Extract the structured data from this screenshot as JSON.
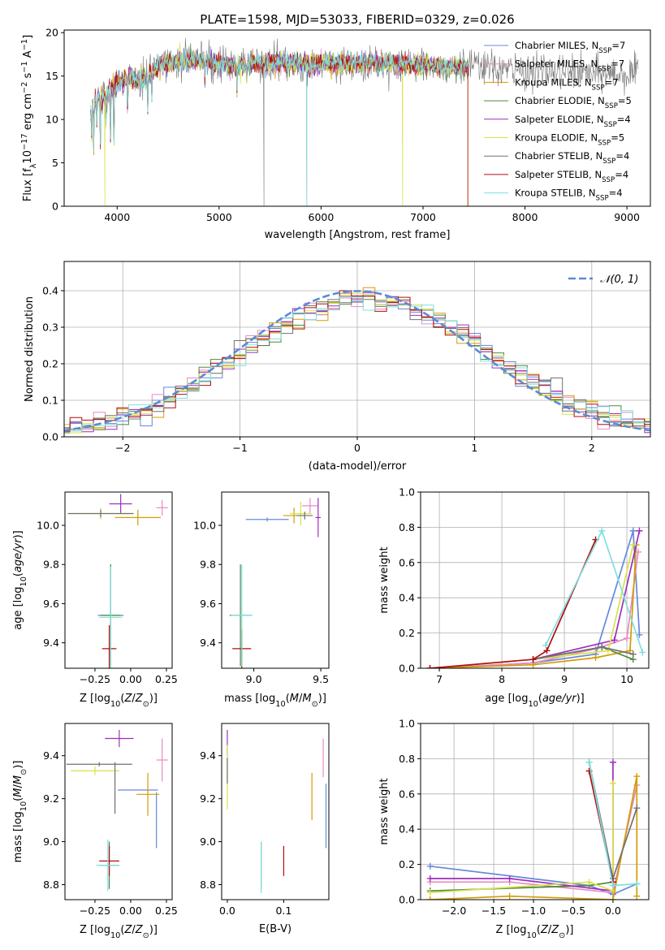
{
  "figure_title": "PLATE=1598, MJD=53033, FIBERID=0329, z=0.026",
  "model_colors": [
    "#6688dd",
    "#e78ac3",
    "#d29d05",
    "#4d8a3e",
    "#9c2fbd",
    "#d9e14a",
    "#707070",
    "#b10d0d",
    "#7fdfe0"
  ],
  "extra_colors": {
    "orange": "#f07f1e",
    "pink": "#e86bbd"
  },
  "chart_data": [
    {
      "id": "spectrum",
      "type": "line",
      "xlabel": "wavelength [Angstrom, rest frame]",
      "ylabel": "Flux [fλ10⁻¹⁷ erg cm⁻² s⁻¹ A⁻¹]",
      "xlim": [
        3480,
        9230
      ],
      "ylim": [
        0,
        20.3
      ],
      "xticks": [
        4000,
        5000,
        6000,
        7000,
        8000,
        9000
      ],
      "yticks": [
        0,
        5,
        10,
        15,
        20
      ],
      "grid": false,
      "legend_position": "upper-right",
      "continuum": [
        [
          3740,
          11.0
        ],
        [
          3800,
          12.3
        ],
        [
          3900,
          13.0
        ],
        [
          4000,
          14.2
        ],
        [
          4100,
          14.8
        ],
        [
          4200,
          14.6
        ],
        [
          4300,
          14.9
        ],
        [
          4400,
          16.2
        ],
        [
          4500,
          16.5
        ],
        [
          4700,
          16.8
        ],
        [
          4900,
          16.7
        ],
        [
          5100,
          16.3
        ],
        [
          5300,
          16.4
        ],
        [
          5600,
          16.6
        ],
        [
          5900,
          16.4
        ],
        [
          6200,
          16.4
        ],
        [
          6500,
          16.6
        ],
        [
          6800,
          16.4
        ],
        [
          7100,
          16.2
        ],
        [
          7440,
          16.1
        ],
        [
          7700,
          15.8
        ],
        [
          8000,
          15.6
        ],
        [
          8500,
          15.4
        ],
        [
          9000,
          15.2
        ],
        [
          9110,
          15.3
        ]
      ],
      "absorption_features": [
        [
          3750,
          8.0
        ],
        [
          3770,
          6.5
        ],
        [
          3800,
          9.5
        ],
        [
          3835,
          7.0
        ],
        [
          3890,
          9.5
        ],
        [
          3934,
          6.3
        ],
        [
          3968,
          4.2
        ],
        [
          4102,
          9.5
        ],
        [
          4227,
          12.2
        ],
        [
          4300,
          11.0
        ],
        [
          4340,
          12.6
        ],
        [
          4861,
          14.0
        ],
        [
          5175,
          13.2
        ],
        [
          5270,
          14.4
        ],
        [
          5892,
          14.6
        ],
        [
          6563,
          15.2
        ],
        [
          8498,
          14.1
        ],
        [
          8542,
          13.6
        ],
        [
          8662,
          14.0
        ]
      ],
      "dropouts": [
        {
          "x": 3880,
          "y": 0
        },
        {
          "x": 5440,
          "y": 0
        },
        {
          "x": 5860,
          "y": 0
        },
        {
          "x": 6800,
          "y": 0
        },
        {
          "x": 7430,
          "y": 0
        }
      ],
      "series": [
        {
          "name": "Chabrier MILES, N",
          "sub": "SSP",
          "suffix": "=7"
        },
        {
          "name": "Salpeter MILES, N",
          "sub": "SSP",
          "suffix": "=7"
        },
        {
          "name": "Kroupa MILES, N",
          "sub": "SSP",
          "suffix": "=7"
        },
        {
          "name": "Chabrier ELODIE, N",
          "sub": "SSP",
          "suffix": "=5"
        },
        {
          "name": "Salpeter ELODIE, N",
          "sub": "SSP",
          "suffix": "=4"
        },
        {
          "name": "Kroupa ELODIE, N",
          "sub": "SSP",
          "suffix": "=5"
        },
        {
          "name": "Chabrier STELIB, N",
          "sub": "SSP",
          "suffix": "=4"
        },
        {
          "name": "Salpeter STELIB, N",
          "sub": "SSP",
          "suffix": "=4"
        },
        {
          "name": "Kroupa STELIB, N",
          "sub": "SSP",
          "suffix": "=4"
        }
      ]
    },
    {
      "id": "residuals",
      "type": "line",
      "xlabel": "(data-model)/error",
      "ylabel": "Normed distribution",
      "xlim": [
        -2.5,
        2.5
      ],
      "ylim": [
        0,
        0.48
      ],
      "xticks": [
        -2,
        -1,
        0,
        1,
        2
      ],
      "yticks": [
        0.0,
        0.1,
        0.2,
        0.3,
        0.4
      ],
      "grid": true,
      "legend_position": "upper-right",
      "reference_curve": {
        "name": "𝒩(0, 1)",
        "color": "#5b8ad6"
      },
      "bin_width": 0.1
    },
    {
      "id": "age-vs-Z",
      "type": "scatter",
      "xlabel": "Z [log10(Z/Z⊙)]",
      "ylabel": "age  [log10(age/yr)]",
      "xlim": [
        -0.46,
        0.29
      ],
      "ylim": [
        9.27,
        10.17
      ],
      "xticks": [
        -0.25,
        0.0,
        0.25
      ],
      "yticks": [
        9.4,
        9.6,
        9.8,
        10.0
      ],
      "grid": false,
      "points": [
        {
          "c": 0,
          "x": -0.14,
          "y": 9.54,
          "dx": 0.09,
          "dy": 0.26
        },
        {
          "c": 1,
          "x": 0.22,
          "y": 10.09,
          "dx": 0.04,
          "dy": 0.04
        },
        {
          "c": 2,
          "x": 0.05,
          "y": 10.04,
          "dx": 0.16,
          "dy": 0.04
        },
        {
          "c": 3,
          "x": -0.14,
          "y": 9.54,
          "dx": 0.07,
          "dy": 0.26
        },
        {
          "c": 4,
          "x": -0.07,
          "y": 10.11,
          "dx": 0.08,
          "dy": 0.05
        },
        {
          "c": 5,
          "x": -0.21,
          "y": 10.06,
          "dx": 0.21,
          "dy": 0.03
        },
        {
          "c": 6,
          "x": -0.21,
          "y": 10.06,
          "dx": 0.23,
          "dy": 0.02
        },
        {
          "c": 7,
          "x": -0.15,
          "y": 9.37,
          "dx": 0.05,
          "dy": 0.12
        },
        {
          "c": 8,
          "x": -0.14,
          "y": 9.53,
          "dx": 0.08,
          "dy": 0.26
        }
      ]
    },
    {
      "id": "age-vs-mass",
      "type": "scatter",
      "xlabel": "mass [log10(M/M⊙)]",
      "ylabel": "",
      "xlim": [
        8.76,
        9.56
      ],
      "ylim": [
        9.27,
        10.17
      ],
      "xticks": [
        9.0,
        9.5
      ],
      "yticks": [
        9.4,
        9.6,
        9.8,
        10.0
      ],
      "grid": false,
      "points": [
        {
          "c": 0,
          "x": 9.1,
          "y": 10.03,
          "dx": 0.16,
          "dy": 0.01
        },
        {
          "c": 1,
          "x": 9.42,
          "y": 10.1,
          "dx": 0.06,
          "dy": 0.04
        },
        {
          "c": 2,
          "x": 9.3,
          "y": 10.05,
          "dx": 0.08,
          "dy": 0.04
        },
        {
          "c": 3,
          "x": 8.9,
          "y": 9.54,
          "dx": 0.08,
          "dy": 0.26
        },
        {
          "c": 4,
          "x": 9.48,
          "y": 10.04,
          "dx": 0.02,
          "dy": 0.1
        },
        {
          "c": 5,
          "x": 9.35,
          "y": 10.06,
          "dx": 0.08,
          "dy": 0.06
        },
        {
          "c": 6,
          "x": 9.38,
          "y": 10.05,
          "dx": 0.06,
          "dy": 0.02
        },
        {
          "c": 7,
          "x": 8.91,
          "y": 9.37,
          "dx": 0.07,
          "dy": 0.1
        },
        {
          "c": 8,
          "x": 8.91,
          "y": 9.54,
          "dx": 0.08,
          "dy": 0.26
        }
      ]
    },
    {
      "id": "weight-vs-age",
      "type": "line",
      "xlabel": "age  [log10(age/yr)]",
      "ylabel": "mass weight",
      "xlim": [
        6.7,
        10.35
      ],
      "ylim": [
        0,
        1.0
      ],
      "xticks": [
        7,
        8,
        9,
        10
      ],
      "yticks": [
        0.0,
        0.2,
        0.4,
        0.6,
        0.8,
        1.0
      ],
      "grid": true,
      "series": [
        {
          "c": 0,
          "x": [
            6.85,
            8.5,
            9.5,
            10.1,
            10.2
          ],
          "y": [
            0.0,
            0.03,
            0.08,
            0.78,
            0.19
          ]
        },
        {
          "c": 1,
          "x": [
            6.85,
            8.5,
            9.5,
            10.0,
            10.18
          ],
          "y": [
            0.0,
            0.03,
            0.11,
            0.17,
            0.66
          ]
        },
        {
          "c": 2,
          "x": [
            6.85,
            8.5,
            9.5,
            10.05,
            10.15
          ],
          "y": [
            0.0,
            0.02,
            0.06,
            0.1,
            0.7
          ]
        },
        {
          "c": 3,
          "x": [
            8.5,
            9.6,
            10.1
          ],
          "y": [
            0.05,
            0.12,
            0.05
          ]
        },
        {
          "c": 4,
          "x": [
            8.5,
            9.8,
            10.2
          ],
          "y": [
            0.05,
            0.16,
            0.78
          ]
        },
        {
          "c": 5,
          "x": [
            8.5,
            9.7,
            10.1
          ],
          "y": [
            0.05,
            0.1,
            0.7
          ]
        },
        {
          "c": 6,
          "x": [
            8.5,
            9.6,
            10.1
          ],
          "y": [
            0.05,
            0.12,
            0.08
          ]
        },
        {
          "c": 7,
          "x": [
            6.85,
            8.5,
            8.72,
            9.5
          ],
          "y": [
            0.0,
            0.05,
            0.1,
            0.73
          ]
        },
        {
          "c": 8,
          "x": [
            8.7,
            9.6,
            10.25
          ],
          "y": [
            0.13,
            0.78,
            0.09
          ]
        }
      ]
    },
    {
      "id": "mass-vs-Z",
      "type": "scatter",
      "xlabel": "Z [log10(Z/Z⊙)]",
      "ylabel": "mass [log10(M/M⊙)]",
      "xlim": [
        -0.46,
        0.29
      ],
      "ylim": [
        8.73,
        9.55
      ],
      "xticks": [
        -0.25,
        0.0,
        0.25
      ],
      "yticks": [
        8.8,
        9.0,
        9.2,
        9.4
      ],
      "grid": false,
      "points": [
        {
          "c": 0,
          "x": 0.05,
          "y": 9.24,
          "dx": 0.14,
          "dy": 0.0
        },
        {
          "c": 0,
          "x": 0.18,
          "y": 9.1,
          "dx": 0.0,
          "dy": 0.13
        },
        {
          "c": 1,
          "x": 0.22,
          "y": 9.38,
          "dx": 0.04,
          "dy": 0.1
        },
        {
          "c": 2,
          "x": 0.12,
          "y": 9.22,
          "dx": 0.08,
          "dy": 0.1
        },
        {
          "c": 3,
          "x": -0.15,
          "y": 8.89,
          "dx": 0.07,
          "dy": 0.11
        },
        {
          "c": 4,
          "x": -0.08,
          "y": 9.48,
          "dx": 0.1,
          "dy": 0.04
        },
        {
          "c": 5,
          "x": -0.25,
          "y": 9.33,
          "dx": 0.17,
          "dy": 0.02
        },
        {
          "c": 6,
          "x": -0.22,
          "y": 9.36,
          "dx": 0.23,
          "dy": 0.01
        },
        {
          "c": 6,
          "x": -0.11,
          "y": 9.25,
          "dx": 0.0,
          "dy": 0.12
        },
        {
          "c": 7,
          "x": -0.15,
          "y": 8.91,
          "dx": 0.07,
          "dy": 0.07
        },
        {
          "c": 8,
          "x": -0.16,
          "y": 8.89,
          "dx": 0.08,
          "dy": 0.12
        }
      ]
    },
    {
      "id": "mass-vs-EBV",
      "type": "scatter",
      "xlabel": "E(B-V)",
      "ylabel": "",
      "xlim": [
        -0.01,
        0.18
      ],
      "ylim": [
        8.73,
        9.55
      ],
      "xticks": [
        0.0,
        0.1
      ],
      "yticks": [
        8.8,
        9.0,
        9.2,
        9.4
      ],
      "grid": false,
      "points": [
        {
          "c": 0,
          "x": 0.175,
          "y": 9.12,
          "dx": 0,
          "dy": 0.15
        },
        {
          "c": 1,
          "x": 0.17,
          "y": 9.39,
          "dx": 0,
          "dy": 0.09
        },
        {
          "c": 2,
          "x": 0.15,
          "y": 9.21,
          "dx": 0,
          "dy": 0.11
        },
        {
          "c": 3,
          "x": 0.06,
          "y": 8.89,
          "dx": 0,
          "dy": 0.11
        },
        {
          "c": 4,
          "x": 0.0,
          "y": 9.46,
          "dx": 0,
          "dy": 0.06
        },
        {
          "c": 5,
          "x": 0.0,
          "y": 9.3,
          "dx": 0,
          "dy": 0.15
        },
        {
          "c": 6,
          "x": 0.0,
          "y": 9.33,
          "dx": 0,
          "dy": 0.06
        },
        {
          "c": 7,
          "x": 0.1,
          "y": 8.91,
          "dx": 0,
          "dy": 0.07
        },
        {
          "c": 8,
          "x": 0.06,
          "y": 8.88,
          "dx": 0,
          "dy": 0.12
        }
      ]
    },
    {
      "id": "weight-vs-Z",
      "type": "line",
      "xlabel": "Z [log10(Z/Z⊙)]",
      "ylabel": "mass weight",
      "xlim": [
        -2.42,
        0.45
      ],
      "ylim": [
        0,
        1.0
      ],
      "xticks": [
        -2.0,
        -1.5,
        -1.0,
        -0.5,
        0.0
      ],
      "yticks": [
        0.0,
        0.2,
        0.4,
        0.6,
        0.8,
        1.0
      ],
      "grid": true,
      "series": [
        {
          "c": 0,
          "x": [
            -2.3,
            -0.3,
            0.0,
            0.3
          ],
          "y": [
            0.19,
            0.08,
            0.03,
            0.09
          ]
        },
        {
          "c": 1,
          "x": [
            -2.3,
            -1.3,
            0.0,
            0.3
          ],
          "y": [
            0.1,
            0.1,
            0.04,
            0.65
          ]
        },
        {
          "c": 2,
          "x": [
            -2.3,
            -1.3,
            0.0,
            0.3,
            0.3
          ],
          "y": [
            0.0,
            0.02,
            0.0,
            0.7,
            0.02
          ]
        },
        {
          "c": 3,
          "x": [
            -2.3,
            -0.3,
            0.0
          ],
          "y": [
            0.05,
            0.08,
            0.1
          ]
        },
        {
          "c": 4,
          "x": [
            -2.3,
            -1.3,
            0.0,
            0.0
          ],
          "y": [
            0.12,
            0.12,
            0.05,
            0.78
          ]
        },
        {
          "c": 5,
          "x": [
            -2.3,
            -0.3,
            0.0,
            0.0
          ],
          "y": [
            0.04,
            0.1,
            0.05,
            0.66
          ]
        },
        {
          "c": 6,
          "x": [
            -0.3,
            0.0,
            0.3
          ],
          "y": [
            0.78,
            0.12,
            0.52
          ]
        },
        {
          "c": 7,
          "x": [
            -0.3,
            0.0
          ],
          "y": [
            0.73,
            0.1
          ]
        },
        {
          "c": 8,
          "x": [
            -0.3,
            0.0,
            0.3
          ],
          "y": [
            0.78,
            0.08,
            0.09
          ]
        }
      ]
    }
  ]
}
